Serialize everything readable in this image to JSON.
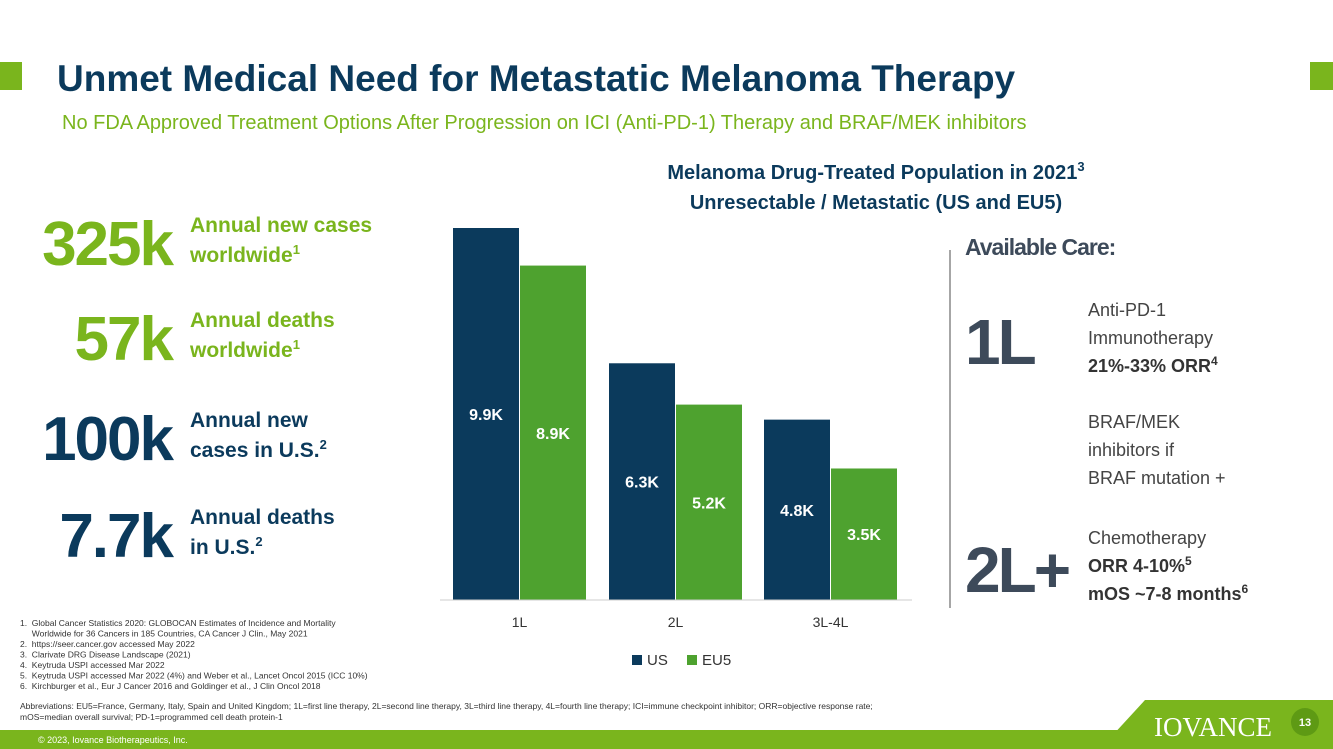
{
  "header": {
    "title": "Unmet Medical Need for Metastatic Melanoma Therapy",
    "subtitle": "No FDA Approved Treatment Options After Progression on ICI (Anti-PD-1) Therapy and BRAF/MEK inhibitors"
  },
  "stats": [
    {
      "value": "325k",
      "label": [
        "Annual new cases",
        "worldwide"
      ],
      "sup": "1"
    },
    {
      "value": "57k",
      "label": [
        "Annual deaths",
        "worldwide"
      ],
      "sup": "1"
    },
    {
      "value": "100k",
      "label": [
        "Annual new",
        "cases in U.S."
      ],
      "sup": "2"
    },
    {
      "value": "7.7k",
      "label": [
        "Annual deaths",
        "in U.S."
      ],
      "sup": "2"
    }
  ],
  "chart_data": {
    "type": "bar",
    "title": "Melanoma Drug-Treated Population in 2021",
    "title_sup": "3",
    "subtitle": "Unresectable / Metastatic (US and EU5)",
    "categories": [
      "1L",
      "2L",
      "3L-4L"
    ],
    "series": [
      {
        "name": "US",
        "color": "#0b3a5c",
        "values": [
          9.9,
          6.3,
          4.8
        ],
        "value_labels": [
          "9.9K",
          "6.3K",
          "4.8K"
        ]
      },
      {
        "name": "EU5",
        "color": "#4ea22f",
        "values": [
          8.9,
          5.2,
          3.5
        ],
        "value_labels": [
          "8.9K",
          "5.2K",
          "3.5K"
        ]
      }
    ],
    "legend": "bottom"
  },
  "care": {
    "heading": "Available Care:",
    "lines": [
      {
        "tag": "1L",
        "items": [
          {
            "text": "Anti-PD-1"
          },
          {
            "text": "Immunotherapy"
          },
          {
            "text": "21%-33% ORR",
            "sup": "4",
            "bold": true
          }
        ]
      },
      {
        "tag": "",
        "items": [
          {
            "text": "BRAF/MEK"
          },
          {
            "text": "inhibitors if"
          },
          {
            "text": "BRAF mutation +"
          }
        ]
      },
      {
        "tag": "2L+",
        "items": [
          {
            "text": "Chemotherapy"
          },
          {
            "text": "ORR 4-10%",
            "sup": "5",
            "bold": true
          },
          {
            "text": "mOS ~7-8 months",
            "sup": "6",
            "bold": true
          }
        ]
      }
    ]
  },
  "footnotes": [
    "1.  Global Cancer Statistics 2020: GLOBOCAN Estimates of Incidence and Mortality",
    "     Worldwide for 36 Cancers in 185 Countries, CA Cancer J Clin., May 2021",
    "2.  https://seer.cancer.gov accessed May 2022",
    "3.  Clarivate DRG Disease Landscape (2021)",
    "4.  Keytruda USPI accessed Mar 2022",
    "5.  Keytruda USPI accessed Mar 2022 (4%) and Weber et al., Lancet Oncol 2015 (ICC 10%)",
    "6.  Kirchburger et al., Eur J Cancer 2016 and Goldinger et al., J Clin Oncol 2018"
  ],
  "abbreviations": [
    "Abbreviations: EU5=France, Germany, Italy, Spain and United Kingdom; 1L=first line therapy, 2L=second line therapy, 3L=third line therapy, 4L=fourth line therapy; ICI=immune checkpoint inhibitor; ORR=objective response rate;",
    "mOS=median overall survival; PD-1=programmed cell death protein-1"
  ],
  "footer": {
    "copyright": "© 2023, Iovance Biotherapeutics, Inc.",
    "logo": "IOVANCE",
    "page": "13"
  }
}
